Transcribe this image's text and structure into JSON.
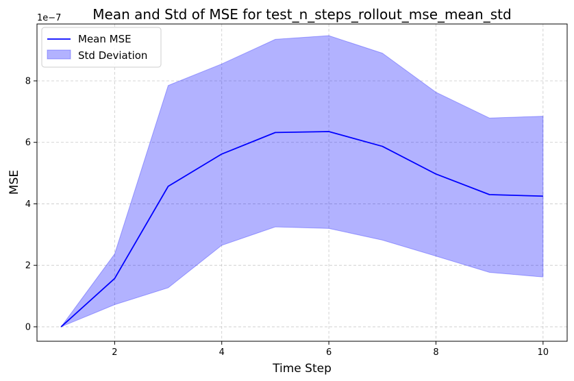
{
  "chart_data": {
    "type": "line",
    "title": "Mean and Std of MSE for test_n_steps_rollout_mse_mean_std",
    "xlabel": "Time Step",
    "ylabel": "MSE",
    "y_offset_label": "1e−7",
    "x": [
      1,
      2,
      3,
      4,
      5,
      6,
      7,
      8,
      9,
      10
    ],
    "xlim": [
      0.55,
      10.45
    ],
    "ylim": [
      -0.47,
      9.85
    ],
    "xticks": [
      2,
      4,
      6,
      8,
      10
    ],
    "xtick_labels": [
      "2",
      "4",
      "6",
      "8",
      "10"
    ],
    "yticks": [
      0,
      2,
      4,
      6,
      8
    ],
    "ytick_labels": [
      "0",
      "2",
      "4",
      "6",
      "8"
    ],
    "y_scale_note": "values in units of 1e-7",
    "grid": true,
    "legend_position": "top-left",
    "series": [
      {
        "name": "Mean MSE",
        "kind": "line",
        "color": "#0000ff",
        "values": [
          0.0,
          1.57,
          4.57,
          5.62,
          6.32,
          6.35,
          5.87,
          4.97,
          4.3,
          4.25
        ]
      },
      {
        "name": "Std Deviation",
        "kind": "band",
        "color": "#0000ff",
        "fill_opacity": 0.3,
        "upper": [
          0.0,
          2.37,
          7.85,
          8.55,
          9.35,
          9.47,
          8.9,
          7.63,
          6.79,
          6.85
        ],
        "lower": [
          0.0,
          0.72,
          1.27,
          2.65,
          3.25,
          3.2,
          2.82,
          2.3,
          1.77,
          1.62
        ]
      }
    ]
  }
}
